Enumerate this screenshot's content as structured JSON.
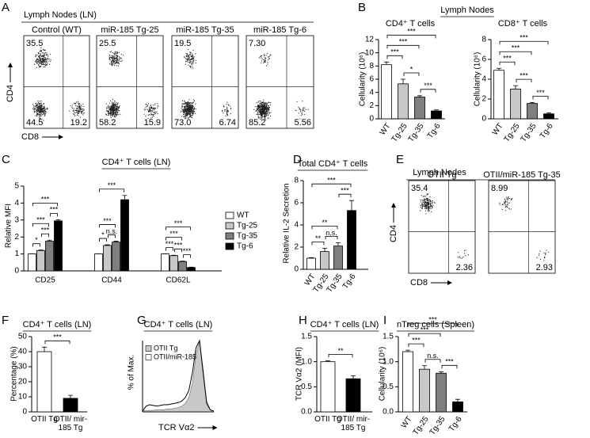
{
  "chart_data": [
    {
      "type": "flow",
      "panel": "A",
      "title": "Lymph Nodes (LN)",
      "xlabel": "CD8",
      "ylabel": "CD4",
      "quadrants": [
        "top-left",
        "bottom-left",
        "bottom-right"
      ],
      "plots": [
        {
          "title": "Control (WT)",
          "values": [
            35.5,
            44.5,
            19.2
          ],
          "value_labels": [
            "35.5",
            "44.5",
            "19.2"
          ]
        },
        {
          "title": "miR-185 Tg-25",
          "values": [
            25.5,
            58.2,
            15.9
          ],
          "value_labels": [
            "25.5",
            "58.2",
            "15.9"
          ]
        },
        {
          "title": "miR-185 Tg-35",
          "values": [
            19.5,
            73.0,
            6.74
          ],
          "value_labels": [
            "19.5",
            "73.0",
            "6.74"
          ]
        },
        {
          "title": "miR-185 Tg-6",
          "values": [
            7.3,
            85.2,
            5.56
          ],
          "value_labels": [
            "7.30",
            "85.2",
            "5.56"
          ]
        }
      ]
    },
    {
      "type": "bar",
      "panel": "B",
      "group_title": "Lymph Nodes",
      "title": "CD4⁺ T cells",
      "ylabel": "Cellularity (10⁶)",
      "categories": [
        "WT",
        "Tg-25",
        "Tg-35",
        "Tg-6"
      ],
      "values": [
        8.2,
        5.3,
        3.3,
        1.2
      ],
      "errors": [
        0.4,
        0.7,
        0.2,
        0.15
      ],
      "colors": [
        "#ffffff",
        "#c8c8c8",
        "#7f7f7f",
        "#000000"
      ],
      "ylim": [
        0,
        12
      ],
      "yticks": [
        0,
        2,
        4,
        6,
        8,
        10,
        12
      ],
      "comparisons": [
        {
          "pair": [
            "WT",
            "Tg-25"
          ],
          "label": "***"
        },
        {
          "pair": [
            "Tg-25",
            "Tg-35"
          ],
          "label": "*"
        },
        {
          "pair": [
            "Tg-35",
            "Tg-6"
          ],
          "label": "***"
        },
        {
          "pair": [
            "WT",
            "Tg-35"
          ],
          "label": "***"
        },
        {
          "pair": [
            "WT",
            "Tg-6"
          ],
          "label": "***"
        }
      ]
    },
    {
      "type": "bar",
      "title": "CD8⁺ T cells",
      "ylabel": "Cellularity (10⁶)",
      "categories": [
        "WT",
        "Tg-25",
        "Tg-35",
        "Tg-6"
      ],
      "values": [
        4.9,
        3.0,
        1.55,
        0.5
      ],
      "errors": [
        0.2,
        0.35,
        0.1,
        0.1
      ],
      "colors": [
        "#ffffff",
        "#c8c8c8",
        "#7f7f7f",
        "#000000"
      ],
      "ylim": [
        0,
        8
      ],
      "yticks": [
        0,
        2,
        4,
        6,
        8
      ],
      "comparisons": [
        {
          "pair": [
            "WT",
            "Tg-25"
          ],
          "label": "***"
        },
        {
          "pair": [
            "Tg-25",
            "Tg-35"
          ],
          "label": "***"
        },
        {
          "pair": [
            "Tg-35",
            "Tg-6"
          ],
          "label": "***"
        },
        {
          "pair": [
            "WT",
            "Tg-35"
          ],
          "label": "***"
        },
        {
          "pair": [
            "WT",
            "Tg-6"
          ],
          "label": "***"
        }
      ]
    },
    {
      "type": "bar",
      "panel": "C",
      "title": "CD4⁺ T cells (LN)",
      "ylabel": "Relative MFI",
      "categories": [
        "CD25",
        "CD44",
        "CD62L"
      ],
      "legend": "right",
      "series": [
        {
          "name": "WT",
          "color": "#ffffff",
          "values": [
            1.0,
            1.0,
            1.0
          ],
          "errors": [
            0,
            0,
            0
          ]
        },
        {
          "name": "Tg-25",
          "color": "#c8c8c8",
          "values": [
            1.2,
            1.5,
            0.9
          ],
          "errors": [
            0.03,
            0.04,
            0.02
          ]
        },
        {
          "name": "Tg-35",
          "color": "#7f7f7f",
          "values": [
            1.75,
            1.7,
            0.55
          ],
          "errors": [
            0.06,
            0.05,
            0.03
          ]
        },
        {
          "name": "Tg-6",
          "color": "#000000",
          "values": [
            2.95,
            4.2,
            0.2
          ],
          "errors": [
            0.07,
            0.25,
            0.02
          ]
        }
      ],
      "ylim": [
        0,
        5
      ],
      "yticks": [
        0,
        1,
        2,
        3,
        4,
        5
      ],
      "comparisons": [
        {
          "category": "CD25",
          "pair": [
            "WT",
            "Tg-25"
          ],
          "label": "*"
        },
        {
          "category": "CD25",
          "pair": [
            "Tg-25",
            "Tg-35"
          ],
          "label": "***"
        },
        {
          "category": "CD25",
          "pair": [
            "Tg-35",
            "Tg-6"
          ],
          "label": "***"
        },
        {
          "category": "CD25",
          "pair": [
            "WT",
            "Tg-35"
          ],
          "label": "***"
        },
        {
          "category": "CD25",
          "pair": [
            "WT",
            "Tg-6"
          ],
          "label": "***"
        },
        {
          "category": "CD44",
          "pair": [
            "WT",
            "Tg-25"
          ],
          "label": "*"
        },
        {
          "category": "CD44",
          "pair": [
            "Tg-25",
            "Tg-35"
          ],
          "label": "n.s."
        },
        {
          "category": "CD44",
          "pair": [
            "WT",
            "Tg-35"
          ],
          "label": "***"
        },
        {
          "category": "CD44",
          "pair": [
            "WT",
            "Tg-6"
          ],
          "label": "***"
        },
        {
          "category": "CD62L",
          "pair": [
            "WT",
            "Tg-25"
          ],
          "label": "***"
        },
        {
          "category": "CD62L",
          "pair": [
            "Tg-25",
            "Tg-35"
          ],
          "label": "***"
        },
        {
          "category": "CD62L",
          "pair": [
            "Tg-35",
            "Tg-6"
          ],
          "label": "***"
        },
        {
          "category": "CD62L",
          "pair": [
            "WT",
            "Tg-35"
          ],
          "label": "***"
        },
        {
          "category": "CD62L",
          "pair": [
            "WT",
            "Tg-6"
          ],
          "label": "***"
        }
      ]
    },
    {
      "type": "bar",
      "panel": "D",
      "title": "Total CD4⁺ T cells",
      "ylabel": "Relative IL-2 Secretion",
      "categories": [
        "WT",
        "Tg-25",
        "Tg-35",
        "Tg-6"
      ],
      "values": [
        1.0,
        1.6,
        2.1,
        5.3
      ],
      "errors": [
        0.05,
        0.3,
        0.3,
        0.9
      ],
      "colors": [
        "#ffffff",
        "#c8c8c8",
        "#7f7f7f",
        "#000000"
      ],
      "ylim": [
        0,
        8
      ],
      "yticks": [
        0,
        2,
        4,
        6,
        8
      ],
      "comparisons": [
        {
          "pair": [
            "WT",
            "Tg-25"
          ],
          "label": "**"
        },
        {
          "pair": [
            "Tg-25",
            "Tg-35"
          ],
          "label": "n.s."
        },
        {
          "pair": [
            "WT",
            "Tg-35"
          ],
          "label": "**"
        },
        {
          "pair": [
            "Tg-35",
            "Tg-6"
          ],
          "label": "***"
        },
        {
          "pair": [
            "WT",
            "Tg-6"
          ],
          "label": "***"
        }
      ]
    },
    {
      "type": "flow",
      "panel": "E",
      "title": "Lymph Nodes",
      "xlabel": "CD8",
      "ylabel": "CD4",
      "quadrants": [
        "top-left",
        "bottom-right"
      ],
      "plots": [
        {
          "title": "OTII Tg",
          "values": [
            35.4,
            2.36
          ],
          "value_labels": [
            "35.4",
            "2.36"
          ]
        },
        {
          "title": "OTII/miR-185 Tg-35",
          "values": [
            8.99,
            2.93
          ],
          "value_labels": [
            "8.99",
            "2.93"
          ]
        }
      ]
    },
    {
      "type": "bar",
      "panel": "F",
      "title": "CD4⁺ T cells (LN)",
      "ylabel": "Percentage (%)",
      "categories": [
        "OTII Tg",
        "OTII/ mir-185 Tg"
      ],
      "values": [
        40,
        9
      ],
      "errors": [
        3,
        2
      ],
      "colors": [
        "#ffffff",
        "#000000"
      ],
      "ylim": [
        0,
        50
      ],
      "yticks": [
        0,
        10,
        20,
        30,
        40,
        50
      ],
      "comparisons": [
        {
          "pair": [
            "OTII Tg",
            "OTII/ mir-185 Tg"
          ],
          "label": "***"
        }
      ]
    },
    {
      "type": "line",
      "panel": "G",
      "title": "CD4⁺ T cells (LN)",
      "ylabel": "% of Max.",
      "xlabel": "TCR Vα2",
      "xlim": [
        0,
        20
      ],
      "ylim": [
        0,
        100
      ],
      "x": [
        0,
        1,
        2,
        3,
        4,
        5,
        6,
        7,
        8,
        9,
        10,
        11,
        12,
        13,
        14,
        15,
        16,
        17,
        18,
        19,
        20
      ],
      "series": [
        {
          "name": "OTII Tg",
          "color": "#c8c8c8",
          "fill": true,
          "values": [
            1,
            2,
            2,
            2,
            3,
            3,
            3,
            4,
            4,
            5,
            6,
            8,
            12,
            20,
            40,
            80,
            100,
            60,
            15,
            3,
            1
          ]
        },
        {
          "name": "OTII/miR-185",
          "color": "#000000",
          "fill": false,
          "values": [
            1,
            8,
            10,
            9,
            8,
            9,
            10,
            10,
            11,
            12,
            13,
            15,
            20,
            30,
            55,
            90,
            100,
            55,
            12,
            3,
            1
          ]
        }
      ]
    },
    {
      "type": "bar",
      "panel": "H",
      "title": "CD4⁺ T cells (LN)",
      "ylabel": "TCR Vα2 (MFI)",
      "categories": [
        "OTII Tg",
        "OTII/ mir-185 Tg"
      ],
      "values": [
        1.0,
        0.66
      ],
      "errors": [
        0.02,
        0.06
      ],
      "colors": [
        "#ffffff",
        "#000000"
      ],
      "ylim": [
        0,
        1.5
      ],
      "yticks": [
        {
          "value": 0,
          "label": "0.0"
        },
        0.5,
        {
          "value": 1,
          "label": "1.0"
        },
        1.5
      ],
      "comparisons": [
        {
          "pair": [
            "OTII Tg",
            "OTII/ mir-185 Tg"
          ],
          "label": "**"
        }
      ]
    },
    {
      "type": "bar",
      "panel": "I",
      "title": "nTreg cells (Spleen)",
      "ylabel": "Cellularity (10⁶)",
      "categories": [
        "WT",
        "Tg-25",
        "Tg-35",
        "Tg-6"
      ],
      "values": [
        1.2,
        0.85,
        0.77,
        0.2
      ],
      "errors": [
        0.03,
        0.07,
        0.03,
        0.05
      ],
      "colors": [
        "#ffffff",
        "#c8c8c8",
        "#7f7f7f",
        "#000000"
      ],
      "ylim": [
        0,
        1.5
      ],
      "yticks": [
        {
          "value": 0,
          "label": "0.0"
        },
        0.5,
        {
          "value": 1,
          "label": "1.0"
        },
        1.5
      ],
      "comparisons": [
        {
          "pair": [
            "WT",
            "Tg-25"
          ],
          "label": "***"
        },
        {
          "pair": [
            "Tg-25",
            "Tg-35"
          ],
          "label": "n.s."
        },
        {
          "pair": [
            "WT",
            "Tg-35"
          ],
          "label": "***"
        },
        {
          "pair": [
            "Tg-35",
            "Tg-6"
          ],
          "label": "***"
        },
        {
          "pair": [
            "WT",
            "Tg-6"
          ],
          "label": "***"
        }
      ]
    }
  ]
}
